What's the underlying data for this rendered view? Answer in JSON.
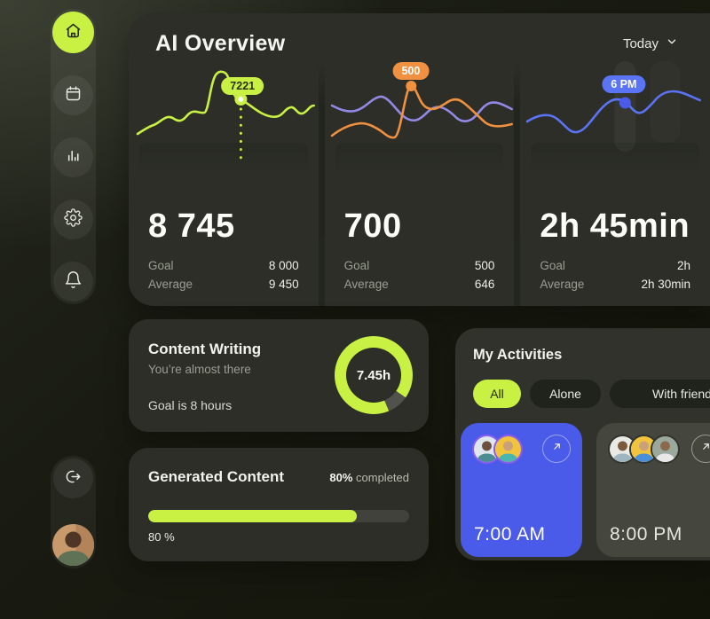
{
  "colors": {
    "accent": "#c8f144",
    "orange": "#ef9140",
    "purple": "#9289e6",
    "blue": "#4a5ae9"
  },
  "header": {
    "title": "AI Overview",
    "period_selector": "Today"
  },
  "sidebar": {
    "items": [
      {
        "icon": "home-icon",
        "active": true
      },
      {
        "icon": "calendar-icon",
        "active": false
      },
      {
        "icon": "bar-chart-icon",
        "active": false
      },
      {
        "icon": "settings-icon",
        "active": false
      },
      {
        "icon": "bell-icon",
        "active": false
      }
    ],
    "logout": {
      "icon": "logout-icon"
    },
    "profile": {
      "icon": "user-avatar"
    }
  },
  "stats": [
    {
      "badge": "7221",
      "value": "8 745",
      "goal_label": "Goal",
      "goal_value": "8 000",
      "average_label": "Average",
      "average_value": "9 450",
      "color": "#c8f144"
    },
    {
      "badge": "500",
      "value": "700",
      "goal_label": "Goal",
      "goal_value": "500",
      "average_label": "Average",
      "average_value": "646",
      "color": "#ef9140"
    },
    {
      "badge": "6 PM",
      "value": "2h 45min",
      "goal_label": "Goal",
      "goal_value": "2h",
      "average_label": "Average",
      "average_value": "2h 30min",
      "color": "#4a5ae9"
    }
  ],
  "content_writing": {
    "title": "Content Writing",
    "subtitle": "You’re almost there",
    "goal_text": "Goal is 8 hours",
    "ring_label": "7.45h",
    "progress_percent": 93
  },
  "generated_content": {
    "title": "Generated Content",
    "completed_value": "80%",
    "completed_suffix": " completed",
    "bar_percent": 80,
    "percent_label": "80 %"
  },
  "my_activities": {
    "title": "My Activities",
    "tabs": [
      {
        "label": "All",
        "active": true
      },
      {
        "label": "Alone",
        "active": false
      },
      {
        "label": "With friends",
        "active": false
      }
    ],
    "tiles": [
      {
        "time": "7:00 AM",
        "style": "primary",
        "attendees": 2
      },
      {
        "time": "8:00 PM",
        "style": "muted",
        "attendees": 3
      }
    ]
  }
}
